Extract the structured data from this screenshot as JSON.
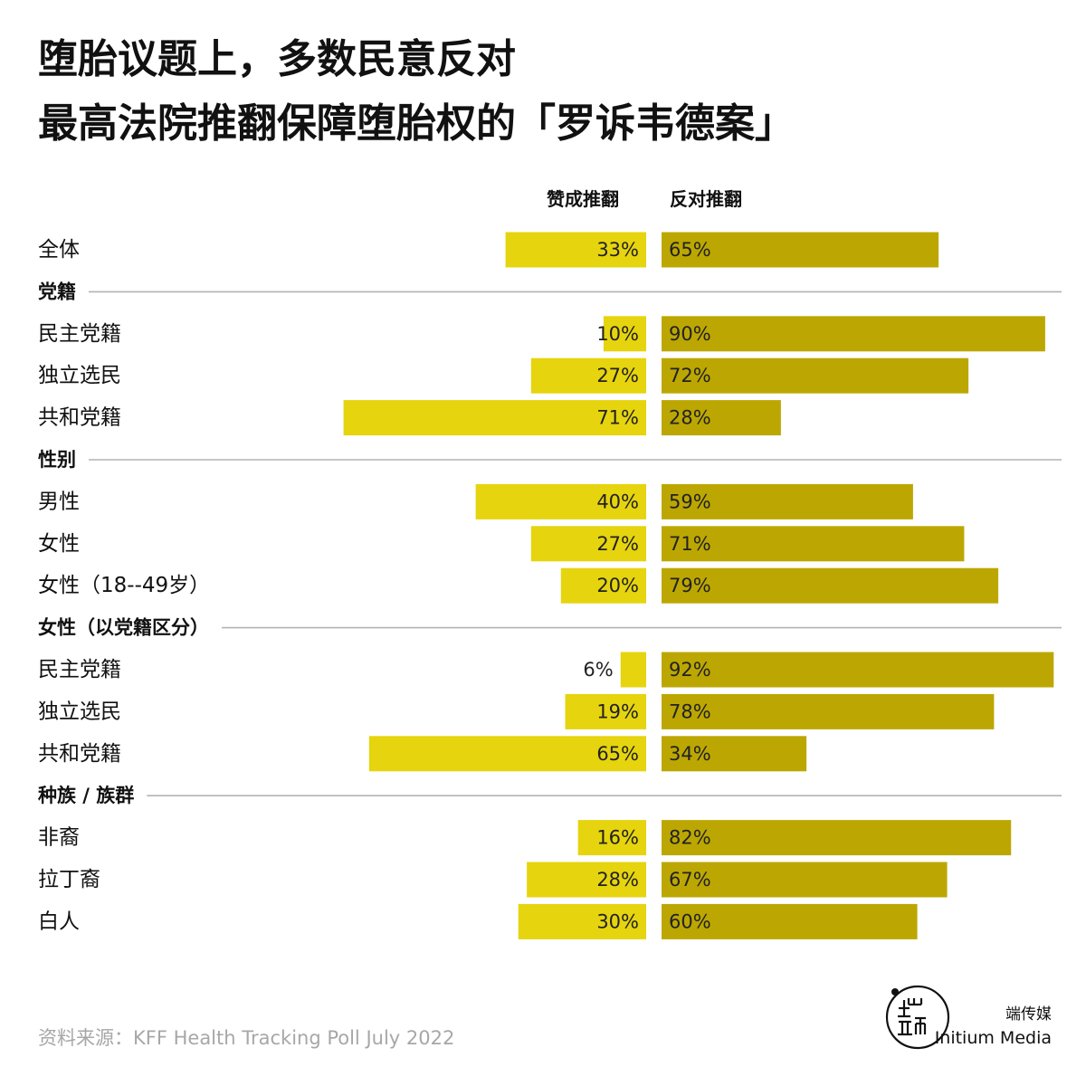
{
  "title": {
    "line1": "堕胎议题上，多数民意反对",
    "line2": "最高法院推翻保障堕胎权的「罗诉韦德案」"
  },
  "columns": {
    "favor": "赞成推翻",
    "oppose": "反对推翻"
  },
  "colors": {
    "favor": "#e6d40e",
    "oppose": "#bca702",
    "divider": "#b3b3b3",
    "source": "#a7a7a7"
  },
  "chart_data": {
    "type": "bar",
    "value_suffix": "%",
    "series": [
      {
        "name": "赞成推翻",
        "key": "favor"
      },
      {
        "name": "反对推翻",
        "key": "oppose"
      }
    ],
    "rows": [
      {
        "kind": "item",
        "label": "全体",
        "favor": 33,
        "oppose": 65
      },
      {
        "kind": "section",
        "label": "党籍"
      },
      {
        "kind": "item",
        "label": "民主党籍",
        "favor": 10,
        "oppose": 90
      },
      {
        "kind": "item",
        "label": "独立选民",
        "favor": 27,
        "oppose": 72
      },
      {
        "kind": "item",
        "label": "共和党籍",
        "favor": 71,
        "oppose": 28
      },
      {
        "kind": "section",
        "label": "性别"
      },
      {
        "kind": "item",
        "label": "男性",
        "favor": 40,
        "oppose": 59
      },
      {
        "kind": "item",
        "label": "女性",
        "favor": 27,
        "oppose": 71
      },
      {
        "kind": "item",
        "label": "女性（18--49岁）",
        "favor": 20,
        "oppose": 79
      },
      {
        "kind": "section",
        "label": "女性（以党籍区分）"
      },
      {
        "kind": "item",
        "label": "民主党籍",
        "favor": 6,
        "oppose": 92
      },
      {
        "kind": "item",
        "label": "独立选民",
        "favor": 19,
        "oppose": 78
      },
      {
        "kind": "item",
        "label": "共和党籍",
        "favor": 65,
        "oppose": 34
      },
      {
        "kind": "section",
        "label": "种族 / 族群"
      },
      {
        "kind": "item",
        "label": "非裔",
        "favor": 16,
        "oppose": 82
      },
      {
        "kind": "item",
        "label": "拉丁裔",
        "favor": 28,
        "oppose": 67
      },
      {
        "kind": "item",
        "label": "白人",
        "favor": 30,
        "oppose": 60
      }
    ]
  },
  "source": "资料来源：KFF Health Tracking Poll July 2022",
  "brand": {
    "cn": "端传媒",
    "en": "Initium Media",
    "logo_icon": "initium-logo-icon"
  }
}
